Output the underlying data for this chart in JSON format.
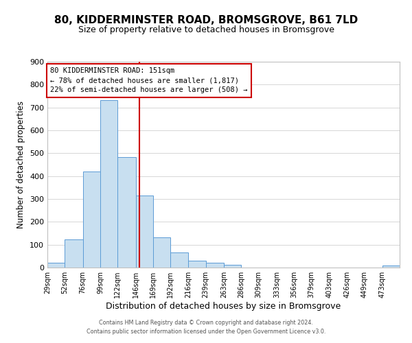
{
  "title": "80, KIDDERMINSTER ROAD, BROMSGROVE, B61 7LD",
  "subtitle": "Size of property relative to detached houses in Bromsgrove",
  "xlabel": "Distribution of detached houses by size in Bromsgrove",
  "ylabel": "Number of detached properties",
  "bin_edges": [
    29,
    52,
    76,
    99,
    122,
    146,
    169,
    192,
    216,
    239,
    263,
    286,
    309,
    333,
    356,
    379,
    403,
    426,
    449,
    473,
    496
  ],
  "bar_heights": [
    22,
    122,
    420,
    733,
    483,
    316,
    133,
    65,
    30,
    22,
    11,
    0,
    0,
    0,
    0,
    0,
    0,
    0,
    0,
    8
  ],
  "bar_color": "#c8dff0",
  "bar_edge_color": "#5b9bd5",
  "property_value": 151,
  "property_line_color": "#cc0000",
  "annotation_text_line1": "80 KIDDERMINSTER ROAD: 151sqm",
  "annotation_text_line2": "← 78% of detached houses are smaller (1,817)",
  "annotation_text_line3": "22% of semi-detached houses are larger (508) →",
  "annotation_box_color": "#ffffff",
  "annotation_box_edge_color": "#cc0000",
  "ylim": [
    0,
    900
  ],
  "yticks": [
    0,
    100,
    200,
    300,
    400,
    500,
    600,
    700,
    800,
    900
  ],
  "footer_line1": "Contains HM Land Registry data © Crown copyright and database right 2024.",
  "footer_line2": "Contains public sector information licensed under the Open Government Licence v3.0."
}
